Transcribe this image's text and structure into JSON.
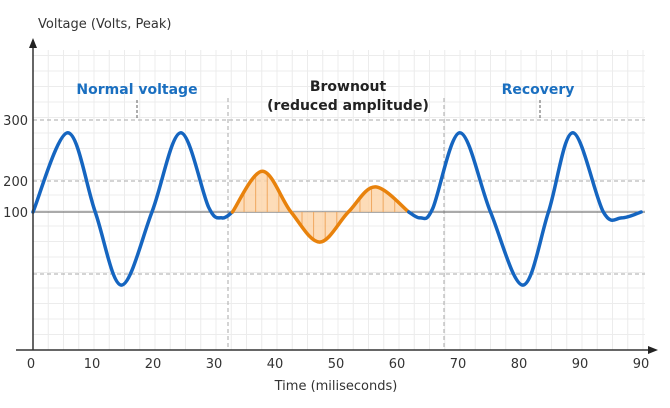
{
  "chart_data": {
    "type": "line",
    "ylabel": "Voltage (Volts, Peak)",
    "xlabel": "Time (miliseconds)",
    "x_tick_labels": [
      "0",
      "10",
      "20",
      "30",
      "40",
      "50",
      "60",
      "70",
      "80",
      "90",
      "90"
    ],
    "y_tick_labels": [
      "100",
      "200",
      "300"
    ],
    "grid": true,
    "baseline": 100,
    "annotations": {
      "normal": "Normal voltage",
      "brownout": "Brownout",
      "brownout_sub": "(reduced amplitude)",
      "recovery": "Recovery"
    },
    "series": [
      {
        "color": "#1565c0",
        "points": [
          [
            0,
            100
          ],
          [
            5.7,
            279
          ],
          [
            10.2,
            100
          ],
          [
            14.5,
            -69
          ],
          [
            19.5,
            100
          ],
          [
            24.2,
            279
          ],
          [
            28.8,
            115
          ],
          [
            31,
            81
          ],
          [
            32.7,
            100
          ]
        ]
      },
      {
        "color": "#e8820c",
        "fill": "#fcd3a6",
        "points": [
          [
            32.7,
            100
          ],
          [
            37.6,
            216
          ],
          [
            42.3,
            100
          ],
          [
            47,
            3
          ],
          [
            51.7,
            100
          ],
          [
            56.1,
            181
          ],
          [
            61.6,
            100
          ]
        ]
      },
      {
        "color": "#1565c0",
        "points": [
          [
            61.6,
            100
          ],
          [
            63.5,
            81
          ],
          [
            65.5,
            110
          ],
          [
            70,
            279
          ],
          [
            75,
            100
          ],
          [
            80.3,
            -69
          ],
          [
            84.5,
            100
          ],
          [
            88.5,
            279
          ],
          [
            93.5,
            100
          ],
          [
            96.5,
            81
          ],
          [
            99.7,
            100
          ]
        ]
      }
    ],
    "colors": {
      "normal": "#1565c0",
      "brownout": "#e8820c",
      "grid": "#e6e6e6",
      "dashed": "#aaaaaa"
    }
  }
}
